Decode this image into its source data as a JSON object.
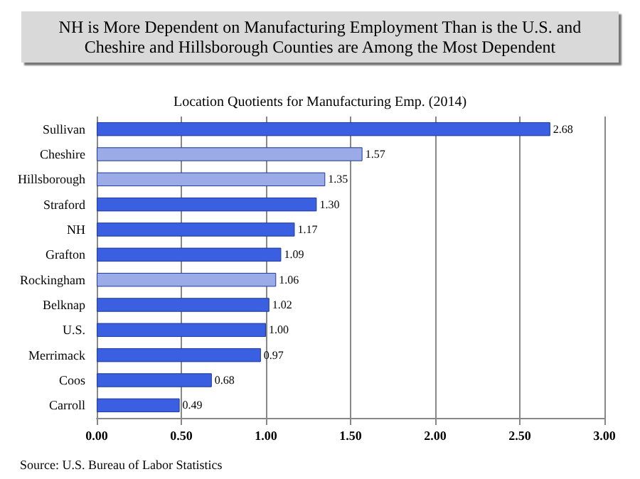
{
  "chart_data": {
    "type": "bar",
    "orientation": "horizontal",
    "title": "NH is More Dependent on Manufacturing Employment Than is the U.S. and\nCheshire and Hillsborough Counties are Among the Most Dependent",
    "subtitle": "Location Quotients for Manufacturing Emp. (2014)",
    "categories": [
      "Sullivan",
      "Cheshire",
      "Hillsborough",
      "Straford",
      "NH",
      "Grafton",
      "Rockingham",
      "Belknap",
      "U.S.",
      "Merrimack",
      "Coos",
      "Carroll"
    ],
    "values": [
      2.68,
      1.57,
      1.35,
      1.3,
      1.17,
      1.09,
      1.06,
      1.02,
      1.0,
      0.97,
      0.68,
      0.49
    ],
    "colors": [
      "#3a5fe0",
      "#9aabe8",
      "#9aabe8",
      "#3a5fe0",
      "#3a5fe0",
      "#3a5fe0",
      "#9aabe8",
      "#3a5fe0",
      "#3a5fe0",
      "#3a5fe0",
      "#3a5fe0",
      "#3a5fe0"
    ],
    "value_labels": [
      "2.68",
      "1.57",
      "1.35",
      "1.30",
      "1.17",
      "1.09",
      "1.06",
      "1.02",
      "1.00",
      "0.97",
      "0.68",
      "0.49"
    ],
    "xlim": [
      0,
      3
    ],
    "xticks": [
      {
        "value": 0,
        "label": "0.00"
      },
      {
        "value": 0.5,
        "label": "0.50"
      },
      {
        "value": 1,
        "label": "1.00"
      },
      {
        "value": 1.5,
        "label": "1.50"
      },
      {
        "value": 2,
        "label": "2.00"
      },
      {
        "value": 2.5,
        "label": "2.50"
      },
      {
        "value": 3,
        "label": "3.00"
      }
    ],
    "grid": "x",
    "annotations": [
      "Source: U.S. Bureau of Labor Statistics"
    ]
  }
}
